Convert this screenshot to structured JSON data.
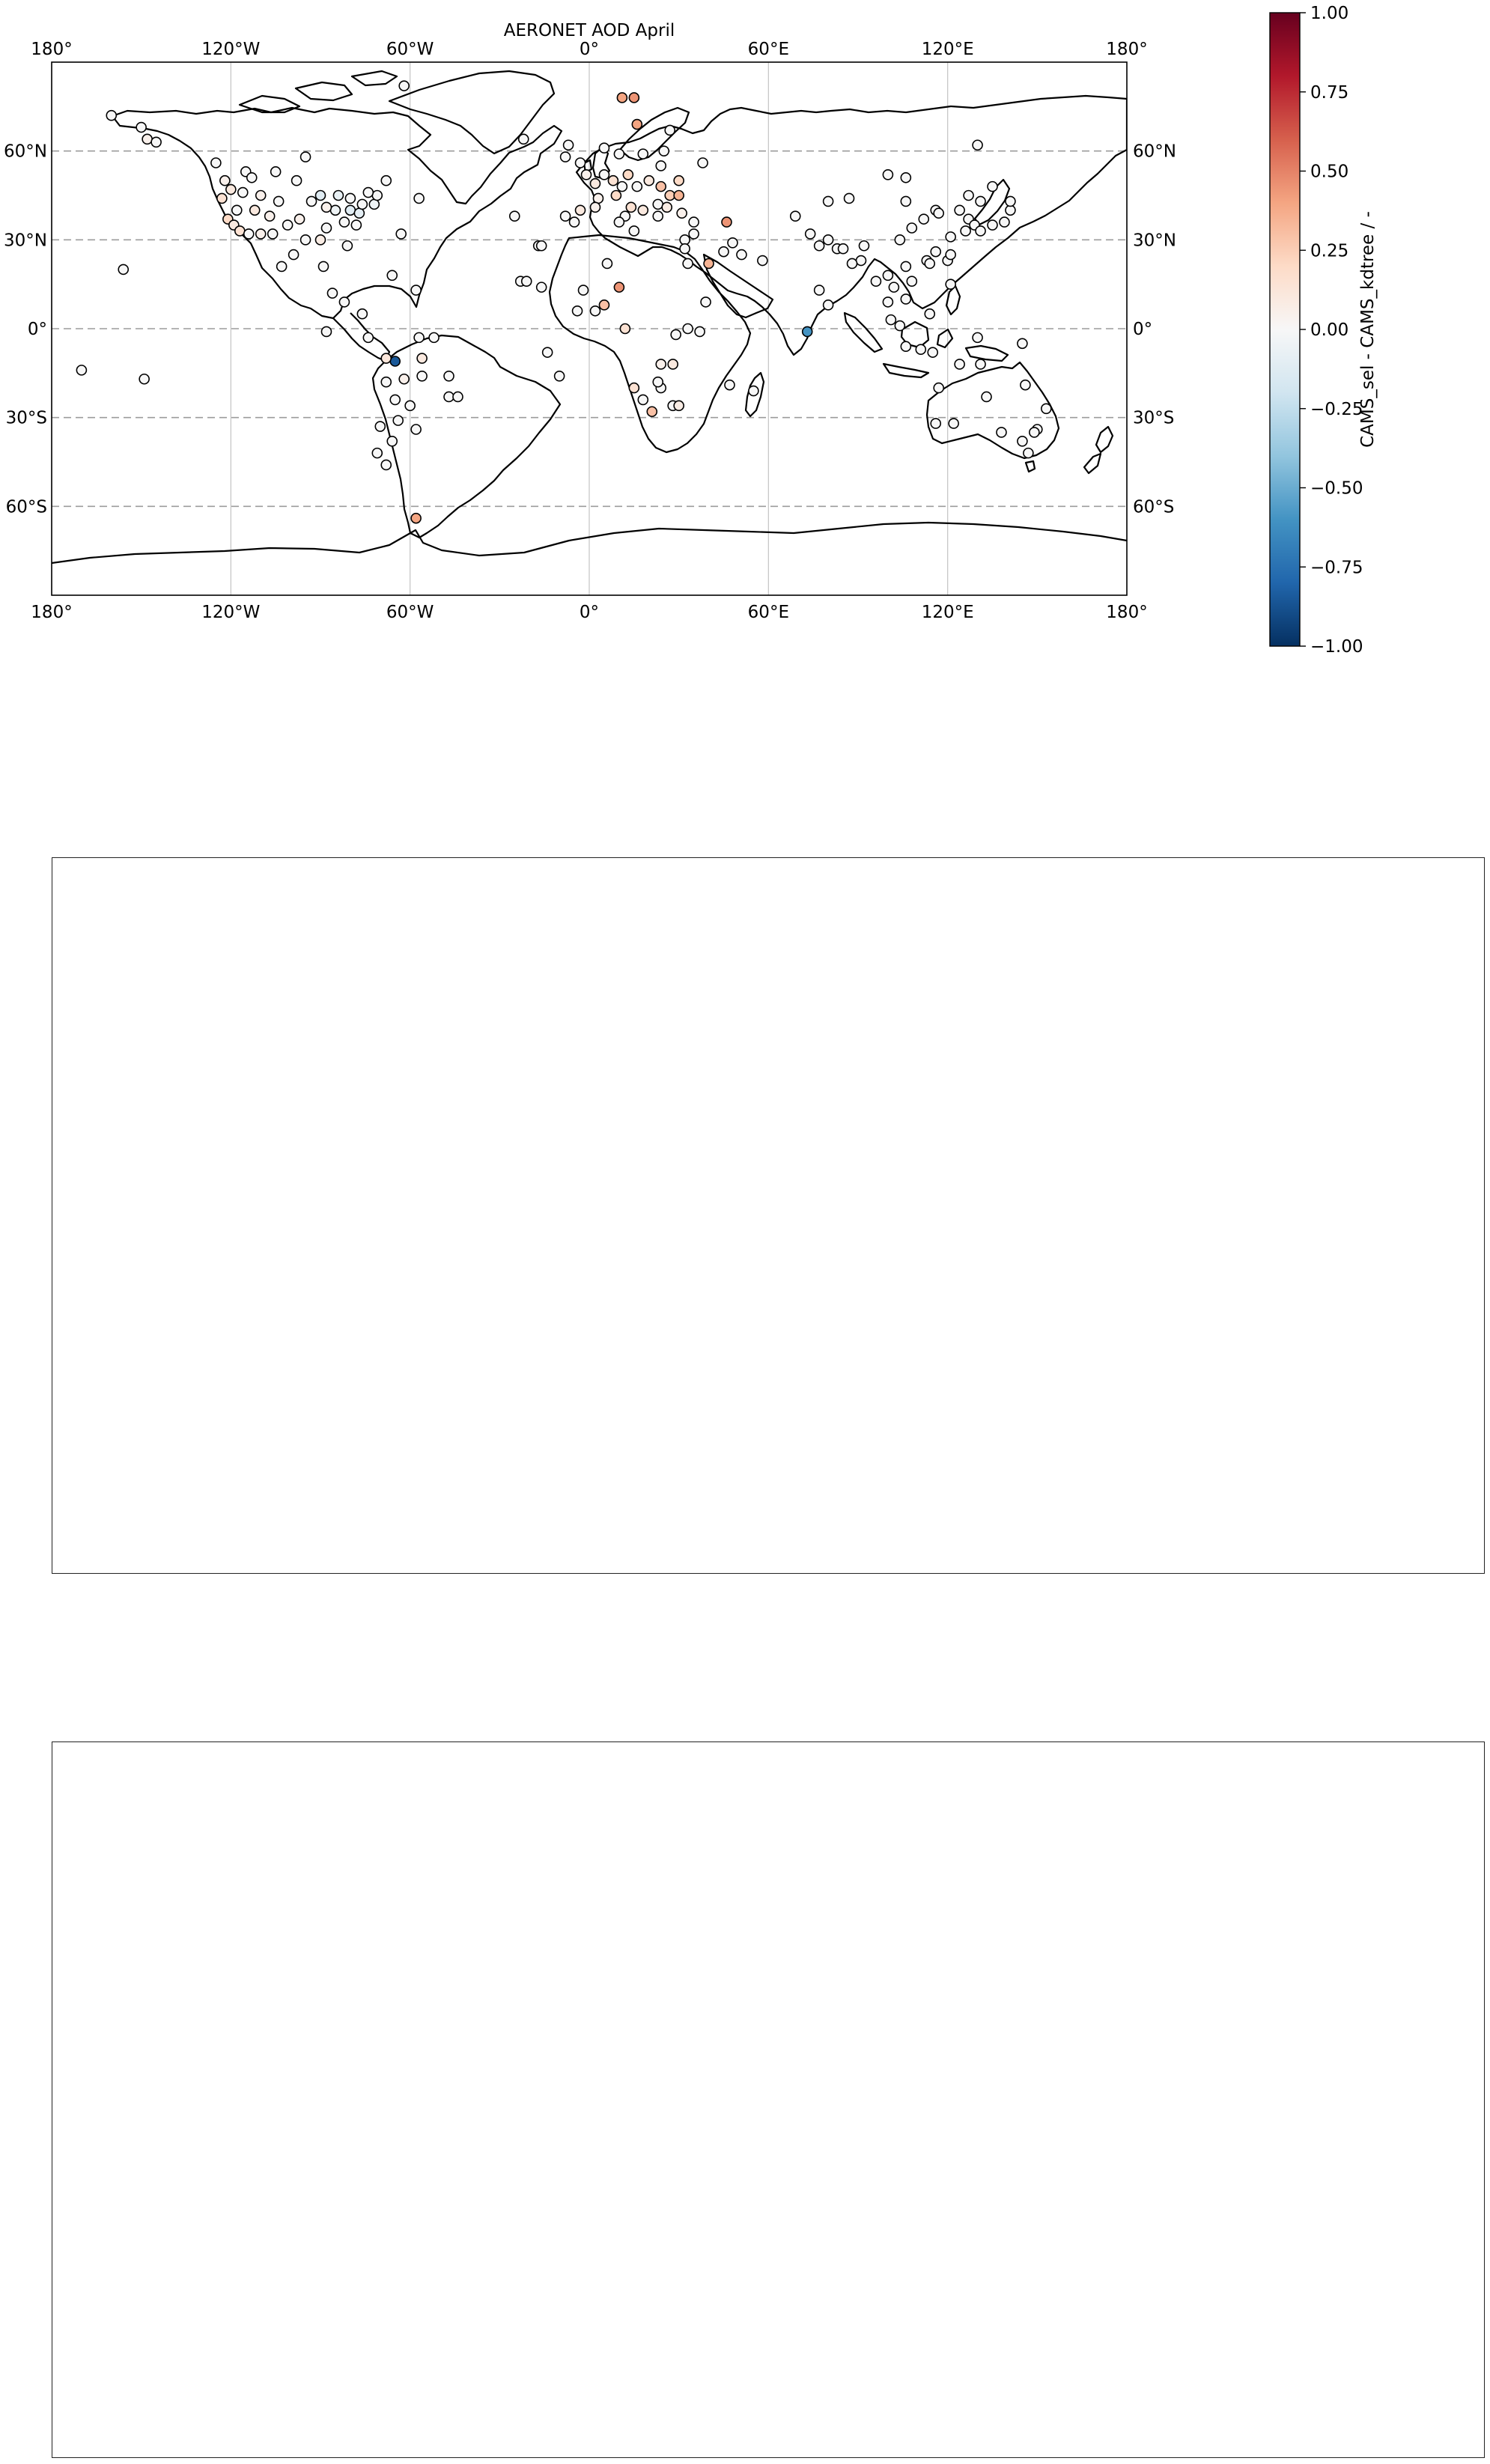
{
  "map": {
    "title": "AERONET AOD April",
    "lon_labels": [
      "180°",
      "120°W",
      "60°W",
      "0°",
      "60°E",
      "120°E",
      "180°"
    ],
    "lat_labels": [
      "60°N",
      "30°N",
      "0°",
      "30°S",
      "60°S"
    ],
    "lon_values": [
      -180,
      -120,
      -60,
      0,
      60,
      120,
      180
    ],
    "lat_values": [
      60,
      30,
      0,
      -30,
      -60
    ],
    "extent": {
      "lon": [
        -180,
        180
      ],
      "lat": [
        -90,
        90
      ]
    },
    "projection": "PlateCarree",
    "gridlines": "on"
  },
  "colorbar": {
    "label": "CAMS_sel - CAMS_kdtree / -",
    "tick_labels": [
      "1.00",
      "0.75",
      "0.50",
      "0.25",
      "0.00",
      "−0.25",
      "−0.50",
      "−0.75",
      "−1.00"
    ],
    "tick_values": [
      1.0,
      0.75,
      0.5,
      0.25,
      0.0,
      -0.25,
      -0.5,
      -0.75,
      -1.0
    ],
    "range": [
      -1,
      1
    ],
    "colormap": "RdBu_r",
    "colors": [
      "#67001f",
      "#b2182b",
      "#d6604d",
      "#f4a582",
      "#fddbc7",
      "#f7f7f7",
      "#d1e5f0",
      "#92c5de",
      "#4393c3",
      "#2166ac",
      "#053061"
    ]
  },
  "stations": [
    {
      "lon": -160,
      "lat": 72,
      "v": 0
    },
    {
      "lon": -150,
      "lat": 68,
      "v": 0
    },
    {
      "lon": -148,
      "lat": 64,
      "v": 0.05
    },
    {
      "lon": -145,
      "lat": 63,
      "v": 0
    },
    {
      "lon": -156,
      "lat": 20,
      "v": 0
    },
    {
      "lon": -170,
      "lat": -14,
      "v": 0
    },
    {
      "lon": -149,
      "lat": -17,
      "v": 0
    },
    {
      "lon": -125,
      "lat": 56,
      "v": 0
    },
    {
      "lon": -115,
      "lat": 53,
      "v": 0
    },
    {
      "lon": -122,
      "lat": 50,
      "v": 0.05
    },
    {
      "lon": -113,
      "lat": 51,
      "v": 0
    },
    {
      "lon": -105,
      "lat": 53,
      "v": 0
    },
    {
      "lon": -98,
      "lat": 50,
      "v": 0
    },
    {
      "lon": -120,
      "lat": 47,
      "v": 0.1
    },
    {
      "lon": -116,
      "lat": 46,
      "v": 0
    },
    {
      "lon": -110,
      "lat": 45,
      "v": 0.05
    },
    {
      "lon": -104,
      "lat": 43,
      "v": 0
    },
    {
      "lon": -123,
      "lat": 44,
      "v": 0.15
    },
    {
      "lon": -118,
      "lat": 40,
      "v": 0
    },
    {
      "lon": -112,
      "lat": 40,
      "v": 0.1
    },
    {
      "lon": -107,
      "lat": 38,
      "v": 0.05
    },
    {
      "lon": -121,
      "lat": 37,
      "v": 0.2
    },
    {
      "lon": -119,
      "lat": 35,
      "v": 0.1
    },
    {
      "lon": -117,
      "lat": 33,
      "v": 0.15
    },
    {
      "lon": -114,
      "lat": 32,
      "v": 0
    },
    {
      "lon": -110,
      "lat": 32,
      "v": 0.05
    },
    {
      "lon": -106,
      "lat": 32,
      "v": 0
    },
    {
      "lon": -101,
      "lat": 35,
      "v": 0
    },
    {
      "lon": -97,
      "lat": 37,
      "v": 0.05
    },
    {
      "lon": -95,
      "lat": 30,
      "v": 0
    },
    {
      "lon": -90,
      "lat": 30,
      "v": 0.08
    },
    {
      "lon": -88,
      "lat": 34,
      "v": 0
    },
    {
      "lon": -85,
      "lat": 40,
      "v": -0.05
    },
    {
      "lon": -80,
      "lat": 40,
      "v": -0.12
    },
    {
      "lon": -77,
      "lat": 39,
      "v": -0.1
    },
    {
      "lon": -76,
      "lat": 42,
      "v": 0
    },
    {
      "lon": -72,
      "lat": 42,
      "v": -0.05
    },
    {
      "lon": -71,
      "lat": 45,
      "v": 0
    },
    {
      "lon": -74,
      "lat": 46,
      "v": 0
    },
    {
      "lon": -80,
      "lat": 44,
      "v": 0
    },
    {
      "lon": -84,
      "lat": 45,
      "v": -0.08
    },
    {
      "lon": -90,
      "lat": 45,
      "v": -0.12
    },
    {
      "lon": -93,
      "lat": 43,
      "v": 0
    },
    {
      "lon": -88,
      "lat": 41,
      "v": 0.05
    },
    {
      "lon": -82,
      "lat": 36,
      "v": 0
    },
    {
      "lon": -78,
      "lat": 35,
      "v": 0
    },
    {
      "lon": -81,
      "lat": 28,
      "v": 0
    },
    {
      "lon": -99,
      "lat": 25,
      "v": 0
    },
    {
      "lon": -103,
      "lat": 21,
      "v": 0
    },
    {
      "lon": -89,
      "lat": 21,
      "v": 0
    },
    {
      "lon": -86,
      "lat": 12,
      "v": 0
    },
    {
      "lon": -82,
      "lat": 9,
      "v": 0
    },
    {
      "lon": -66,
      "lat": 18,
      "v": 0
    },
    {
      "lon": -63,
      "lat": 32,
      "v": 0
    },
    {
      "lon": -88,
      "lat": -1,
      "v": 0
    },
    {
      "lon": -65,
      "lat": -11,
      "v": -0.85
    },
    {
      "lon": -58,
      "lat": 13,
      "v": 0
    },
    {
      "lon": -76,
      "lat": 5,
      "v": 0
    },
    {
      "lon": -74,
      "lat": -3,
      "v": 0
    },
    {
      "lon": -68,
      "lat": -10,
      "v": 0.12
    },
    {
      "lon": -57,
      "lat": -3,
      "v": 0
    },
    {
      "lon": -52,
      "lat": -3,
      "v": 0
    },
    {
      "lon": -56,
      "lat": -10,
      "v": 0.1
    },
    {
      "lon": -56,
      "lat": -16,
      "v": 0
    },
    {
      "lon": -62,
      "lat": -17,
      "v": 0.05
    },
    {
      "lon": -47,
      "lat": -16,
      "v": 0
    },
    {
      "lon": -47,
      "lat": -23,
      "v": 0
    },
    {
      "lon": -44,
      "lat": -23,
      "v": 0
    },
    {
      "lon": -60,
      "lat": -26,
      "v": 0
    },
    {
      "lon": -65,
      "lat": -24,
      "v": 0
    },
    {
      "lon": -68,
      "lat": -18,
      "v": 0
    },
    {
      "lon": -58,
      "lat": -34,
      "v": 0
    },
    {
      "lon": -64,
      "lat": -31,
      "v": 0
    },
    {
      "lon": -70,
      "lat": -33,
      "v": 0
    },
    {
      "lon": -66,
      "lat": -38,
      "v": 0
    },
    {
      "lon": -68,
      "lat": -46,
      "v": 0
    },
    {
      "lon": -71,
      "lat": -42,
      "v": 0
    },
    {
      "lon": -58,
      "lat": -64,
      "v": 0.4
    },
    {
      "lon": -62,
      "lat": 82,
      "v": 0
    },
    {
      "lon": -57,
      "lat": 44,
      "v": 0
    },
    {
      "lon": -95,
      "lat": 58,
      "v": 0
    },
    {
      "lon": -68,
      "lat": 50,
      "v": 0
    },
    {
      "lon": -8,
      "lat": 58,
      "v": 0
    },
    {
      "lon": -3,
      "lat": 56,
      "v": 0
    },
    {
      "lon": -1,
      "lat": 52,
      "v": 0.05
    },
    {
      "lon": 2,
      "lat": 49,
      "v": 0.1
    },
    {
      "lon": 5,
      "lat": 52,
      "v": 0
    },
    {
      "lon": 8,
      "lat": 50,
      "v": 0.15
    },
    {
      "lon": 11,
      "lat": 48,
      "v": 0
    },
    {
      "lon": 13,
      "lat": 52,
      "v": 0.2
    },
    {
      "lon": 16,
      "lat": 48,
      "v": 0
    },
    {
      "lon": 20,
      "lat": 50,
      "v": 0.1
    },
    {
      "lon": 24,
      "lat": 48,
      "v": 0.3
    },
    {
      "lon": 27,
      "lat": 45,
      "v": 0.25
    },
    {
      "lon": 23,
      "lat": 42,
      "v": 0
    },
    {
      "lon": 14,
      "lat": 41,
      "v": 0.15
    },
    {
      "lon": 9,
      "lat": 45,
      "v": 0.2
    },
    {
      "lon": 3,
      "lat": 44,
      "v": 0.05
    },
    {
      "lon": -3,
      "lat": 40,
      "v": 0.1
    },
    {
      "lon": -8,
      "lat": 38,
      "v": 0
    },
    {
      "lon": -5,
      "lat": 36,
      "v": 0
    },
    {
      "lon": 2,
      "lat": 41,
      "v": 0.05
    },
    {
      "lon": 12,
      "lat": 38,
      "v": 0
    },
    {
      "lon": 18,
      "lat": 40,
      "v": 0.1
    },
    {
      "lon": 23,
      "lat": 38,
      "v": 0
    },
    {
      "lon": 26,
      "lat": 41,
      "v": 0.08
    },
    {
      "lon": 30,
      "lat": 45,
      "v": 0.35
    },
    {
      "lon": 30,
      "lat": 50,
      "v": 0.2
    },
    {
      "lon": 24,
      "lat": 55,
      "v": 0
    },
    {
      "lon": 25,
      "lat": 60,
      "v": 0
    },
    {
      "lon": 18,
      "lat": 59,
      "v": 0
    },
    {
      "lon": 10,
      "lat": 59,
      "v": 0
    },
    {
      "lon": 5,
      "lat": 61,
      "v": 0
    },
    {
      "lon": -22,
      "lat": 64,
      "v": 0
    },
    {
      "lon": -7,
      "lat": 62,
      "v": 0
    },
    {
      "lon": -17,
      "lat": 28,
      "v": 0
    },
    {
      "lon": -16,
      "lat": 28,
      "v": 0
    },
    {
      "lon": -25,
      "lat": 38,
      "v": 0
    },
    {
      "lon": -23,
      "lat": 16,
      "v": 0
    },
    {
      "lon": -21,
      "lat": 16,
      "v": 0
    },
    {
      "lon": 11,
      "lat": 78,
      "v": 0.4
    },
    {
      "lon": 15,
      "lat": 78,
      "v": 0.45
    },
    {
      "lon": 16,
      "lat": 69,
      "v": 0.4
    },
    {
      "lon": 27,
      "lat": 67,
      "v": 0
    },
    {
      "lon": 38,
      "lat": 56,
      "v": 0
    },
    {
      "lon": 35,
      "lat": 32,
      "v": 0
    },
    {
      "lon": 32,
      "lat": 30,
      "v": 0
    },
    {
      "lon": 35,
      "lat": 36,
      "v": 0
    },
    {
      "lon": 31,
      "lat": 39,
      "v": 0.05
    },
    {
      "lon": 15,
      "lat": 33,
      "v": 0
    },
    {
      "lon": 10,
      "lat": 36,
      "v": 0
    },
    {
      "lon": -16,
      "lat": 14,
      "v": 0
    },
    {
      "lon": -2,
      "lat": 13,
      "v": 0
    },
    {
      "lon": 6,
      "lat": 22,
      "v": 0
    },
    {
      "lon": 10,
      "lat": 14,
      "v": 0.45
    },
    {
      "lon": 2,
      "lat": 6,
      "v": 0
    },
    {
      "lon": 5,
      "lat": 8,
      "v": 0.3
    },
    {
      "lon": -4,
      "lat": 6,
      "v": 0
    },
    {
      "lon": -10,
      "lat": -16,
      "v": 0
    },
    {
      "lon": -14,
      "lat": -8,
      "v": 0
    },
    {
      "lon": 12,
      "lat": 0,
      "v": 0.15
    },
    {
      "lon": 33,
      "lat": 0,
      "v": 0
    },
    {
      "lon": 15,
      "lat": -20,
      "v": 0.15
    },
    {
      "lon": 18,
      "lat": -24,
      "v": 0
    },
    {
      "lon": 21,
      "lat": -28,
      "v": 0.3
    },
    {
      "lon": 24,
      "lat": -20,
      "v": 0
    },
    {
      "lon": 28,
      "lat": -26,
      "v": 0
    },
    {
      "lon": 30,
      "lat": -26,
      "v": 0.08
    },
    {
      "lon": 23,
      "lat": -18,
      "v": 0
    },
    {
      "lon": 28,
      "lat": -12,
      "v": 0.1
    },
    {
      "lon": 24,
      "lat": -12,
      "v": 0.05
    },
    {
      "lon": 29,
      "lat": -2,
      "v": 0
    },
    {
      "lon": 37,
      "lat": -1,
      "v": 0
    },
    {
      "lon": 39,
      "lat": 9,
      "v": 0
    },
    {
      "lon": 33,
      "lat": 22,
      "v": 0
    },
    {
      "lon": 32,
      "lat": 27,
      "v": 0
    },
    {
      "lon": 40,
      "lat": 22,
      "v": 0.35
    },
    {
      "lon": 47,
      "lat": -19,
      "v": 0
    },
    {
      "lon": 45,
      "lat": 26,
      "v": 0
    },
    {
      "lon": 48,
      "lat": 29,
      "v": 0
    },
    {
      "lon": 46,
      "lat": 36,
      "v": 0.45
    },
    {
      "lon": 51,
      "lat": 25,
      "v": 0
    },
    {
      "lon": 58,
      "lat": 23,
      "v": 0
    },
    {
      "lon": 55,
      "lat": -21,
      "v": 0
    },
    {
      "lon": 73,
      "lat": -1,
      "v": -0.6
    },
    {
      "lon": 69,
      "lat": 38,
      "v": 0
    },
    {
      "lon": 74,
      "lat": 32,
      "v": 0
    },
    {
      "lon": 77,
      "lat": 28,
      "v": 0
    },
    {
      "lon": 80,
      "lat": 30,
      "v": 0
    },
    {
      "lon": 77,
      "lat": 13,
      "v": 0
    },
    {
      "lon": 80,
      "lat": 8,
      "v": 0
    },
    {
      "lon": 83,
      "lat": 27,
      "v": 0
    },
    {
      "lon": 85,
      "lat": 27,
      "v": 0
    },
    {
      "lon": 91,
      "lat": 23,
      "v": 0
    },
    {
      "lon": 88,
      "lat": 22,
      "v": 0
    },
    {
      "lon": 80,
      "lat": 43,
      "v": 0
    },
    {
      "lon": 87,
      "lat": 44,
      "v": 0
    },
    {
      "lon": 92,
      "lat": 28,
      "v": 0
    },
    {
      "lon": 96,
      "lat": 16,
      "v": 0
    },
    {
      "lon": 100,
      "lat": 18,
      "v": 0
    },
    {
      "lon": 102,
      "lat": 14,
      "v": 0
    },
    {
      "lon": 100,
      "lat": 9,
      "v": 0
    },
    {
      "lon": 101,
      "lat": 3,
      "v": 0
    },
    {
      "lon": 104,
      "lat": 1,
      "v": 0
    },
    {
      "lon": 106,
      "lat": -6,
      "v": 0
    },
    {
      "lon": 111,
      "lat": -7,
      "v": 0
    },
    {
      "lon": 115,
      "lat": -8,
      "v": 0
    },
    {
      "lon": 106,
      "lat": 21,
      "v": 0
    },
    {
      "lon": 108,
      "lat": 16,
      "v": 0
    },
    {
      "lon": 106,
      "lat": 10,
      "v": 0
    },
    {
      "lon": 113,
      "lat": 23,
      "v": 0
    },
    {
      "lon": 114,
      "lat": 22,
      "v": 0
    },
    {
      "lon": 116,
      "lat": 26,
      "v": 0
    },
    {
      "lon": 116,
      "lat": 40,
      "v": 0
    },
    {
      "lon": 117,
      "lat": 39,
      "v": 0
    },
    {
      "lon": 112,
      "lat": 37,
      "v": 0
    },
    {
      "lon": 108,
      "lat": 34,
      "v": 0
    },
    {
      "lon": 104,
      "lat": 30,
      "v": 0
    },
    {
      "lon": 106,
      "lat": 43,
      "v": 0
    },
    {
      "lon": 121,
      "lat": 31,
      "v": 0
    },
    {
      "lon": 120,
      "lat": 23,
      "v": 0
    },
    {
      "lon": 121,
      "lat": 25,
      "v": 0
    },
    {
      "lon": 121,
      "lat": 15,
      "v": 0
    },
    {
      "lon": 124,
      "lat": 40,
      "v": 0
    },
    {
      "lon": 127,
      "lat": 37,
      "v": 0
    },
    {
      "lon": 129,
      "lat": 35,
      "v": 0
    },
    {
      "lon": 126,
      "lat": 33,
      "v": 0
    },
    {
      "lon": 131,
      "lat": 33,
      "v": 0
    },
    {
      "lon": 135,
      "lat": 35,
      "v": 0
    },
    {
      "lon": 139,
      "lat": 36,
      "v": 0
    },
    {
      "lon": 141,
      "lat": 40,
      "v": 0
    },
    {
      "lon": 141,
      "lat": 43,
      "v": 0
    },
    {
      "lon": 127,
      "lat": 45,
      "v": 0
    },
    {
      "lon": 135,
      "lat": 48,
      "v": 0
    },
    {
      "lon": 131,
      "lat": 43,
      "v": 0
    },
    {
      "lon": 100,
      "lat": 52,
      "v": 0
    },
    {
      "lon": 106,
      "lat": 51,
      "v": 0
    },
    {
      "lon": 130,
      "lat": 62,
      "v": 0
    },
    {
      "lon": 117,
      "lat": -20,
      "v": 0
    },
    {
      "lon": 124,
      "lat": -12,
      "v": 0
    },
    {
      "lon": 131,
      "lat": -12,
      "v": 0
    },
    {
      "lon": 133,
      "lat": -23,
      "v": 0
    },
    {
      "lon": 138,
      "lat": -35,
      "v": 0
    },
    {
      "lon": 145,
      "lat": -38,
      "v": 0
    },
    {
      "lon": 147,
      "lat": -42,
      "v": 0
    },
    {
      "lon": 150,
      "lat": -34,
      "v": 0
    },
    {
      "lon": 153,
      "lat": -27,
      "v": 0
    },
    {
      "lon": 146,
      "lat": -19,
      "v": 0
    },
    {
      "lon": 149,
      "lat": -35,
      "v": 0
    },
    {
      "lon": 116,
      "lat": -32,
      "v": 0
    },
    {
      "lon": 122,
      "lat": -32,
      "v": 0
    },
    {
      "lon": 145,
      "lat": -5,
      "v": 0
    },
    {
      "lon": 130,
      "lat": -3,
      "v": 0
    },
    {
      "lon": 114,
      "lat": 5,
      "v": 0
    }
  ]
}
